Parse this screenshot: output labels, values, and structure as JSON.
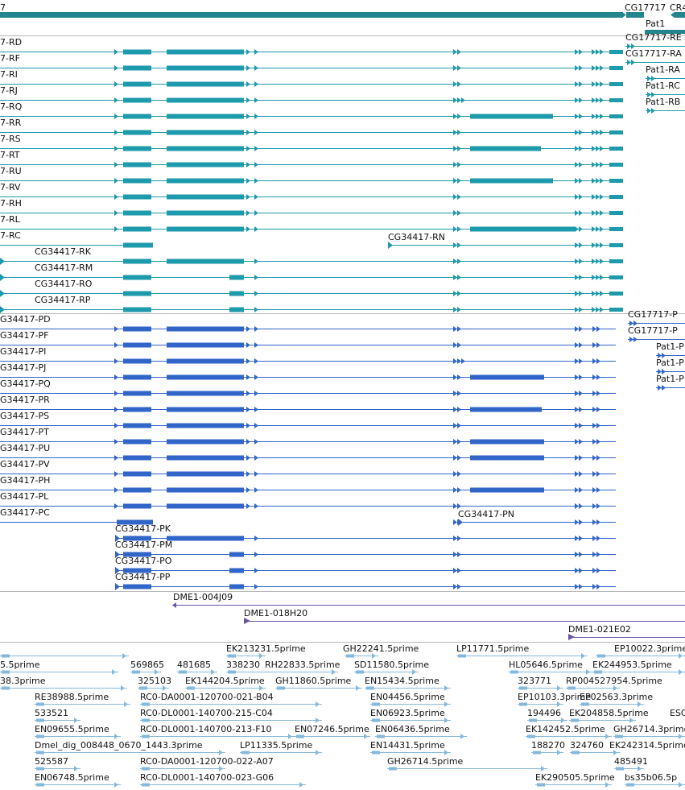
{
  "colors": {
    "track1": "#1d9aab",
    "track1_dark": "#23868e",
    "track2": "#3165c8",
    "clone": "#6a52a3",
    "est": "#86b8da",
    "separator": "#b8b8b8"
  },
  "gene_track": {
    "left_label": "7",
    "cg17717_label": "CG17717",
    "cr_label": "CR4",
    "pat1_label": "Pat1"
  },
  "transcripts_a": {
    "items": [
      "7-RD",
      "7-RF",
      "7-RI",
      "7-RJ",
      "7-RQ",
      "7-RR",
      "7-RS",
      "7-RT",
      "7-RU",
      "7-RV",
      "7-RH",
      "7-RL",
      "7-RC",
      "CG34417-RK",
      "CG34417-RM",
      "CG34417-RO",
      "CG34417-RP"
    ],
    "rn_label": "CG34417-RN",
    "right_labels": [
      "CG17717-RE",
      "CG17717-RA",
      "Pat1-RA",
      "Pat1-RC",
      "Pat1-RB"
    ]
  },
  "transcripts_b": {
    "items": [
      "G34417-PD",
      "G34417-PF",
      "G34417-PI",
      "G34417-PJ",
      "G34417-PQ",
      "G34417-PR",
      "G34417-PS",
      "G34417-PT",
      "G34417-PU",
      "G34417-PV",
      "G34417-PH",
      "G34417-PL",
      "G34417-PC",
      "CG34417-PK",
      "CG34417-PM",
      "CG34417-PO",
      "CG34417-PP"
    ],
    "pn_label": "CG34417-PN",
    "right_labels": [
      "CG17717-P",
      "CG17717-P",
      "Pat1-P",
      "Pat1-P",
      "Pat1-P"
    ]
  },
  "clones": [
    "DME1-004J09",
    "DME1-018H20",
    "DME1-021E02"
  ],
  "ests": [
    "EK213231.5prime",
    "GH22241.5prime",
    "LP11771.5prime",
    "EP10022.3prime",
    "5.5prime",
    "569865",
    "481685",
    "338230",
    "RH22833.5prime",
    "SD11580.5prime",
    "HL05646.5prime",
    "EK244953.5prime",
    "38.3prime",
    "325103",
    "EK144204.5prime",
    "GH11860.5prime",
    "EN15434.5prime",
    "323771",
    "RP004527954.5prime",
    "RE38988.5prime",
    "RC0-DA0001-120700-021-B04",
    "EN04456.5prime",
    "EP10103.3prime",
    "EP02563.3prime",
    "533521",
    "RC0-DL0001-140700-215-C04",
    "EN06923.5prime",
    "194496",
    "EK204858.5prime",
    "ESC",
    "EN09655.5prime",
    "RC0-DL0001-140700-213-F10",
    "EN07246.5prime",
    "EN06436.5prime",
    "EK142452.5prime",
    "GH26714.3prime",
    "Dmel_dig_008448_0670_1443.3prime",
    "LP11335.5prime",
    "EN14431.5prime",
    "188270",
    "324760",
    "EK242314.5prime",
    "525587",
    "RC0-DA0001-120700-022-A07",
    "GH26714.5prime",
    "485491",
    "EN06748.5prime",
    "RC0-DL0001-140700-023-G06",
    "EK290505.5prime",
    "bs35b06.5p"
  ]
}
